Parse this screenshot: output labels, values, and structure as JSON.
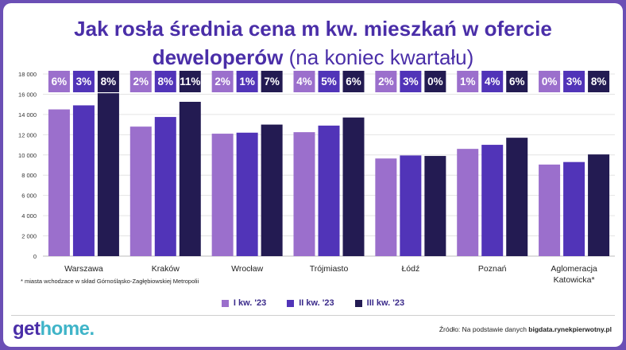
{
  "title": {
    "line1": "Jak rosła średnia cena m kw. mieszkań w ofercie",
    "line2_bold": "deweloperów",
    "line2_normal": "(na koniec kwartału)"
  },
  "footnote": "* miasta wchodzace w skład Górnośląsko-Zagłębiowskiej Metropolii",
  "logo": {
    "part1": "get",
    "part2": "home."
  },
  "source": {
    "prefix": "Źródło: Na podstawie danych",
    "bold": "bigdata.rynekpierwotny.pl"
  },
  "colors": {
    "q1": "#9b6fcc",
    "q2": "#5134b8",
    "q3": "#231b52",
    "title": "#4a2ea8",
    "background": "#6b4fb5"
  },
  "chart_data": {
    "type": "bar",
    "categories": [
      "Warszawa",
      "Kraków",
      "Wrocław",
      "Trójmiasto",
      "Łódź",
      "Poznań",
      "Aglomeracja\nKatowicka*"
    ],
    "series": [
      {
        "name": "I kw. '23",
        "values": [
          14500,
          12800,
          12100,
          12250,
          9650,
          10600,
          9050
        ]
      },
      {
        "name": "II kw. '23",
        "values": [
          14900,
          13750,
          12200,
          12900,
          9950,
          11000,
          9300
        ]
      },
      {
        "name": "III kw. '23",
        "values": [
          16100,
          15250,
          13000,
          13700,
          9900,
          11700,
          10050
        ]
      }
    ],
    "change_labels": [
      [
        "6%",
        "3%",
        "8%"
      ],
      [
        "2%",
        "8%",
        "11%"
      ],
      [
        "2%",
        "1%",
        "7%"
      ],
      [
        "4%",
        "5%",
        "6%"
      ],
      [
        "2%",
        "3%",
        "0%"
      ],
      [
        "1%",
        "4%",
        "6%"
      ],
      [
        "0%",
        "3%",
        "8%"
      ]
    ],
    "yticks": [
      0,
      2000,
      4000,
      6000,
      8000,
      10000,
      12000,
      14000,
      16000,
      18000
    ],
    "ytick_labels": [
      "0",
      "2 000",
      "4 000",
      "6 000",
      "8 000",
      "10 000",
      "12 000",
      "14 000",
      "16 000",
      "18 000"
    ],
    "ylim": [
      0,
      18000
    ],
    "grid": true,
    "legend": "bottom"
  }
}
